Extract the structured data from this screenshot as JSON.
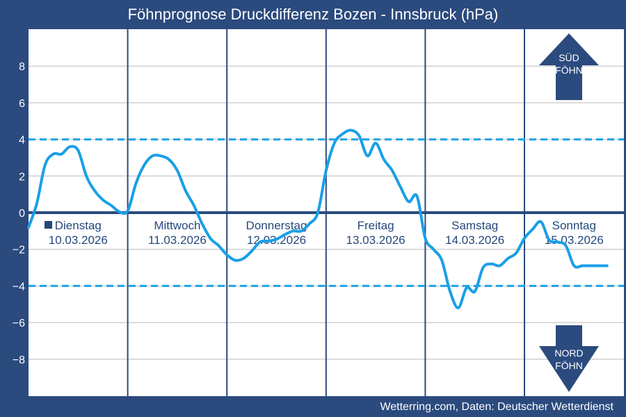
{
  "chart_data": {
    "type": "line",
    "title": "Föhnprognose Druckdifferenz Bozen - Innsbruck (hPa)",
    "xlabel": "",
    "ylabel": "",
    "ylim": [
      -10,
      10
    ],
    "yticks": [
      8,
      6,
      4,
      2,
      0,
      -2,
      -4,
      -6,
      -8
    ],
    "ytick_labels": [
      "8",
      "6",
      "4",
      "2",
      "0",
      "−2",
      "−4",
      "−6",
      "−8"
    ],
    "grid": true,
    "thresholds": [
      4,
      -4
    ],
    "days": [
      {
        "name": "Dienstag",
        "date": "10.03.2026"
      },
      {
        "name": "Mittwoch",
        "date": "11.03.2026"
      },
      {
        "name": "Donnerstag",
        "date": "12.03.2026"
      },
      {
        "name": "Freitag",
        "date": "13.03.2026"
      },
      {
        "name": "Samstag",
        "date": "14.03.2026"
      },
      {
        "name": "Sonntag",
        "date": "15.03.2026"
      }
    ],
    "x_hours": [
      0,
      2,
      4,
      6,
      8,
      10,
      12,
      14,
      16,
      18,
      20,
      22,
      24,
      26,
      28,
      30,
      32,
      34,
      36,
      38,
      40,
      42,
      44,
      46,
      48,
      50,
      52,
      54,
      56,
      58,
      60,
      62,
      64,
      66,
      68,
      70,
      72,
      74,
      76,
      78,
      80,
      82,
      84,
      86,
      88,
      90,
      92,
      94,
      96,
      98,
      100,
      102,
      104,
      106,
      108,
      110,
      112,
      114,
      116,
      118,
      120,
      122,
      124,
      126,
      128,
      130,
      132,
      134,
      136,
      138,
      140
    ],
    "series": [
      {
        "values": [
          -0.8,
          0.5,
          2.6,
          3.2,
          3.2,
          3.6,
          3.4,
          2.0,
          1.2,
          0.7,
          0.4,
          0.05,
          0.1,
          1.6,
          2.6,
          3.1,
          3.1,
          2.9,
          2.3,
          1.2,
          0.4,
          -0.6,
          -1.4,
          -1.8,
          -2.3,
          -2.6,
          -2.5,
          -2.1,
          -1.6,
          -1.55,
          -1.45,
          -1.2,
          -1.0,
          -1.0,
          -0.6,
          0.0,
          2.3,
          3.8,
          4.3,
          4.5,
          4.2,
          3.1,
          3.8,
          2.9,
          2.3,
          1.4,
          0.6,
          0.9,
          -1.4,
          -2.0,
          -2.6,
          -4.3,
          -5.2,
          -4.1,
          -4.3,
          -3.0,
          -2.8,
          -2.9,
          -2.5,
          -2.2,
          -1.4,
          -0.9,
          -0.5,
          -1.5,
          -1.6,
          -1.8,
          -2.9,
          -2.9,
          -2.9,
          -2.9,
          -2.9
        ]
      }
    ],
    "arrows": [
      {
        "line1": "SÜD",
        "line2": "FÖHN"
      },
      {
        "line1": "NORD",
        "line2": "FÖHN"
      }
    ],
    "footer": "Wetterring.com, Daten: Deutscher Wetterdienst",
    "colors": {
      "background": "#2b4a7e",
      "plot": "#ffffff",
      "line": "#1a9fe6",
      "threshold": "#1aa3e8",
      "zero": "#2b4a7e",
      "arrow": "#2b4a7e"
    }
  }
}
